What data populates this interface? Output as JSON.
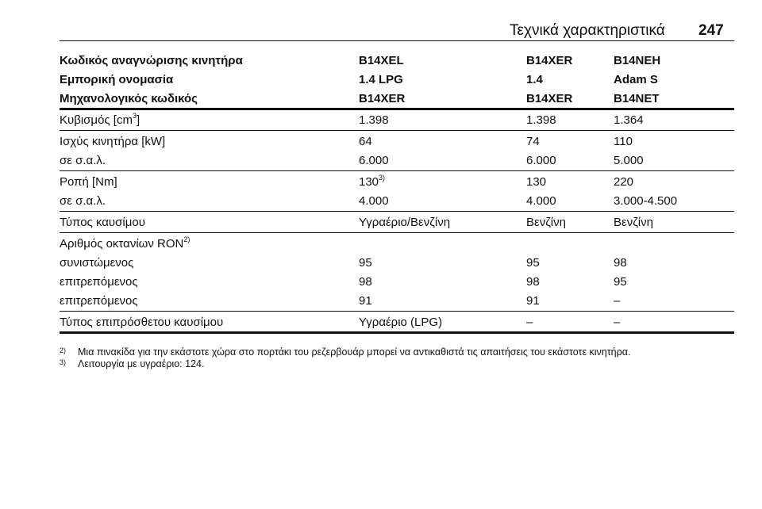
{
  "header": {
    "title": "Τεχνικά χαρακτηριστικά",
    "page": "247"
  },
  "table": {
    "sections": [
      [
        [
          "Κωδικός αναγνώρισης κινητήρα",
          "B14XEL",
          "B14XER",
          "B14NEH"
        ],
        [
          "Εμπορική ονομασία",
          "1.4 LPG",
          "1.4",
          "Adam S"
        ],
        [
          "Μηχανολογικός κωδικός",
          "B14XER",
          "B14XER",
          "B14NET"
        ]
      ],
      [
        [
          {
            "text": "Κυβισμός [cm",
            "sup": "3",
            "after": "]"
          },
          "1.398",
          "1.398",
          "1.364"
        ]
      ],
      [
        [
          "Ισχύς κινητήρα [kW]",
          "64",
          "74",
          "110"
        ],
        [
          "σε σ.α.λ.",
          "6.000",
          "6.000",
          "5.000"
        ]
      ],
      [
        [
          "Ροπή [Nm]",
          {
            "text": "130",
            "sup": "3)"
          },
          "130",
          "220"
        ],
        [
          "σε σ.α.λ.",
          "4.000",
          "4.000",
          "3.000-4.500"
        ]
      ],
      [
        [
          "Τύπος καυσίμου",
          "Υγραέριο/Βενζίνη",
          "Βενζίνη",
          "Βενζίνη"
        ]
      ],
      [
        [
          {
            "text": "Αριθμός οκτανίων RON",
            "sup": "2)"
          }
        ],
        [
          "συνιστώμενος",
          "95",
          "95",
          "98"
        ],
        [
          "επιτρεπόμενος",
          "98",
          "98",
          "95"
        ],
        [
          "επιτρεπόμενος",
          "91",
          "91",
          "–"
        ]
      ],
      [
        [
          "Τύπος επιπρόσθετου καυσίμου",
          "Υγραέριο (LPG)",
          "–",
          "–"
        ]
      ]
    ]
  },
  "footnotes": [
    {
      "marker": "2)",
      "text": "Μια πινακίδα για την εκάστοτε χώρα στο πορτάκι του ρεζερβουάρ μπορεί να αντικαθιστά τις απαιτήσεις του εκάστοτε κινητήρα."
    },
    {
      "marker": "3)",
      "text": "Λειτουργία με υγραέριο: 124."
    }
  ]
}
